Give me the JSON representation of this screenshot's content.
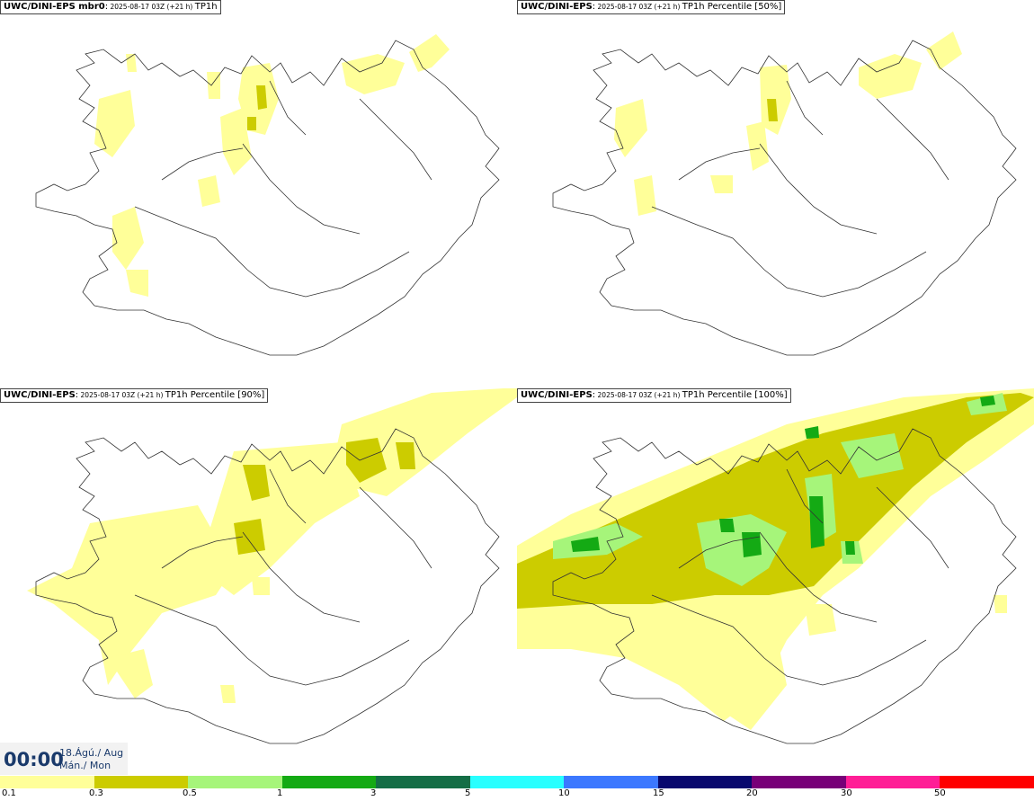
{
  "panels": [
    {
      "model": "UWC/DINI-EPS mbr0",
      "sep": ":",
      "run": " 2025-08-17 03Z (+21 h) ",
      "param": "TP1h"
    },
    {
      "model": "UWC/DINI-EPS",
      "sep": ":",
      "run": " 2025-08-17 03Z (+21 h) ",
      "param": "TP1h Percentile [50%]"
    },
    {
      "model": "UWC/DINI-EPS",
      "sep": ":",
      "run": " 2025-08-17 03Z (+21 h) ",
      "param": "TP1h Percentile [90%]"
    },
    {
      "model": "UWC/DINI-EPS",
      "sep": ":",
      "run": " 2025-08-17 03Z (+21 h) ",
      "param": "TP1h Percentile [100%]"
    }
  ],
  "valid_time": {
    "time": "00:00",
    "date": "18.Ágú./ Aug",
    "weekday": "Mán./ Mon"
  },
  "legend": {
    "colors": [
      "#ffff99",
      "#cccc00",
      "#a6f57a",
      "#14aa14",
      "#146e46",
      "#28ffff",
      "#3c78ff",
      "#08086e",
      "#780078",
      "#ff1e96",
      "#ff0000"
    ],
    "labels": [
      "0.1",
      "0.3",
      "0.5",
      "1",
      "3",
      "5",
      "10",
      "15",
      "20",
      "30",
      "50"
    ]
  }
}
